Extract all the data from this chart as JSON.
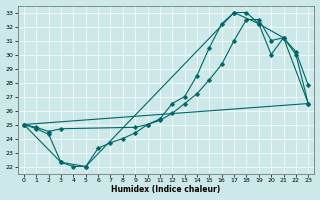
{
  "bg_color": "#cce8e8",
  "line_color": "#006666",
  "xlabel": "Humidex (Indice chaleur)",
  "xlim": [
    -0.5,
    23.5
  ],
  "ylim": [
    21.5,
    33.5
  ],
  "xticks": [
    0,
    1,
    2,
    3,
    4,
    5,
    6,
    7,
    8,
    9,
    10,
    11,
    12,
    13,
    14,
    15,
    16,
    17,
    18,
    19,
    20,
    21,
    22,
    23
  ],
  "yticks": [
    22,
    23,
    24,
    25,
    26,
    27,
    28,
    29,
    30,
    31,
    32,
    33
  ],
  "curve1_x": [
    0,
    1,
    2,
    3,
    4,
    5,
    6,
    7,
    8,
    9,
    10,
    11,
    12,
    13,
    14,
    15,
    16,
    17,
    18,
    19,
    20,
    21,
    22,
    23
  ],
  "curve1_y": [
    25.0,
    24.7,
    24.3,
    22.3,
    22.0,
    22.0,
    23.3,
    23.7,
    24.0,
    24.4,
    25.0,
    25.4,
    26.5,
    27.0,
    28.5,
    30.5,
    32.2,
    33.0,
    33.0,
    32.2,
    30.0,
    31.2,
    30.2,
    27.8
  ],
  "curve2_x": [
    0,
    1,
    2,
    3,
    9,
    10,
    11,
    12,
    13,
    14,
    15,
    16,
    17,
    18,
    19,
    20,
    21,
    22,
    23
  ],
  "curve2_y": [
    25.0,
    24.8,
    24.5,
    24.7,
    24.8,
    25.0,
    25.3,
    25.8,
    26.5,
    27.2,
    28.2,
    29.3,
    31.0,
    32.5,
    32.5,
    31.0,
    31.2,
    30.0,
    26.5
  ],
  "curve3_x": [
    0,
    23
  ],
  "curve3_y": [
    25.0,
    26.5
  ],
  "sparse_x": [
    0,
    3,
    5,
    17,
    19,
    21,
    23
  ],
  "sparse_y": [
    25.0,
    22.3,
    22.0,
    33.0,
    32.2,
    31.2,
    26.5
  ],
  "markersize": 2.5
}
